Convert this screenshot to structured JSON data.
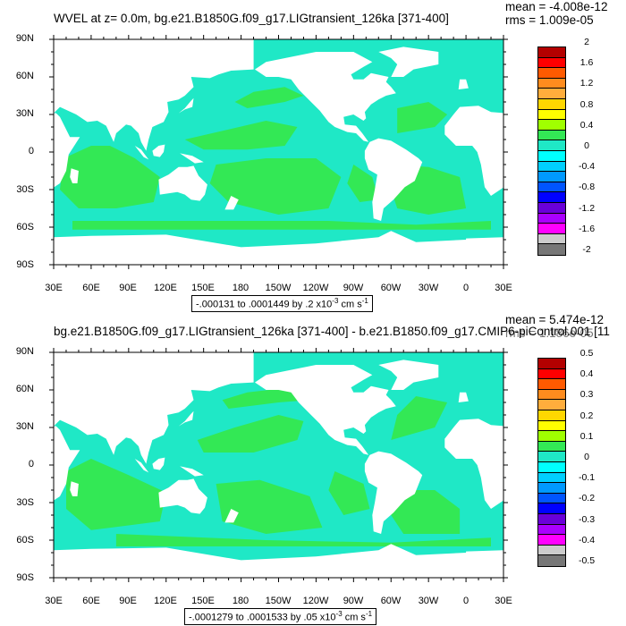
{
  "panel1": {
    "title": "WVEL at z=   0.0m, bg.e21.B1850G.f09_g17.LIGtransient_126ka [371-400]",
    "mean": "mean = -4.008e-12",
    "rms": "rms = 1.009e-05",
    "range_label": "-.000131 to .0001449 by .2 x10",
    "range_exp": "-3",
    "range_unit": " cm s",
    "range_unit_exp": "-1",
    "colorbar_labels": [
      "2",
      "1.6",
      "1.2",
      "0.8",
      "0.4",
      "0",
      "-0.4",
      "-0.8",
      "-1.2",
      "-1.6",
      "-2"
    ]
  },
  "panel2": {
    "title": "bg.e21.B1850G.f09_g17.LIGtransient_126ka [371-400] - b.e21.B1850.f09_g17.CMIP6-piControl.001 [11",
    "mean": "mean = 5.474e-12",
    "rms": "rms = 1.186e-05",
    "range_label": "-.0001279 to .0001533 by .05 x10",
    "range_exp": "-3",
    "range_unit": " cm s",
    "range_unit_exp": "-1",
    "colorbar_labels": [
      "0.5",
      "0.4",
      "0.3",
      "0.2",
      "0.1",
      "0",
      "-0.1",
      "-0.2",
      "-0.3",
      "-0.4",
      "-0.5"
    ]
  },
  "lat_labels": [
    "90N",
    "60N",
    "30N",
    "0",
    "30S",
    "60S",
    "90S"
  ],
  "lon_labels": [
    "30E",
    "60E",
    "90E",
    "120E",
    "150E",
    "180",
    "150W",
    "120W",
    "90W",
    "60W",
    "30W",
    "0",
    "30E"
  ],
  "colors": {
    "ocean_positive": "#33e855",
    "ocean_negative": "#1fe8c6",
    "land": "#ffffff",
    "colorbar": [
      "#b30000",
      "#ff0000",
      "#ff5a00",
      "#ff8c1e",
      "#ffad3c",
      "#ffd700",
      "#ffff00",
      "#a0ff00",
      "#33e855",
      "#1fe8c6",
      "#00ffff",
      "#00cfff",
      "#0099ff",
      "#0055ff",
      "#0000ff",
      "#6a00d9",
      "#aa00ff",
      "#ff00ff",
      "#cccccc",
      "#777777"
    ]
  }
}
